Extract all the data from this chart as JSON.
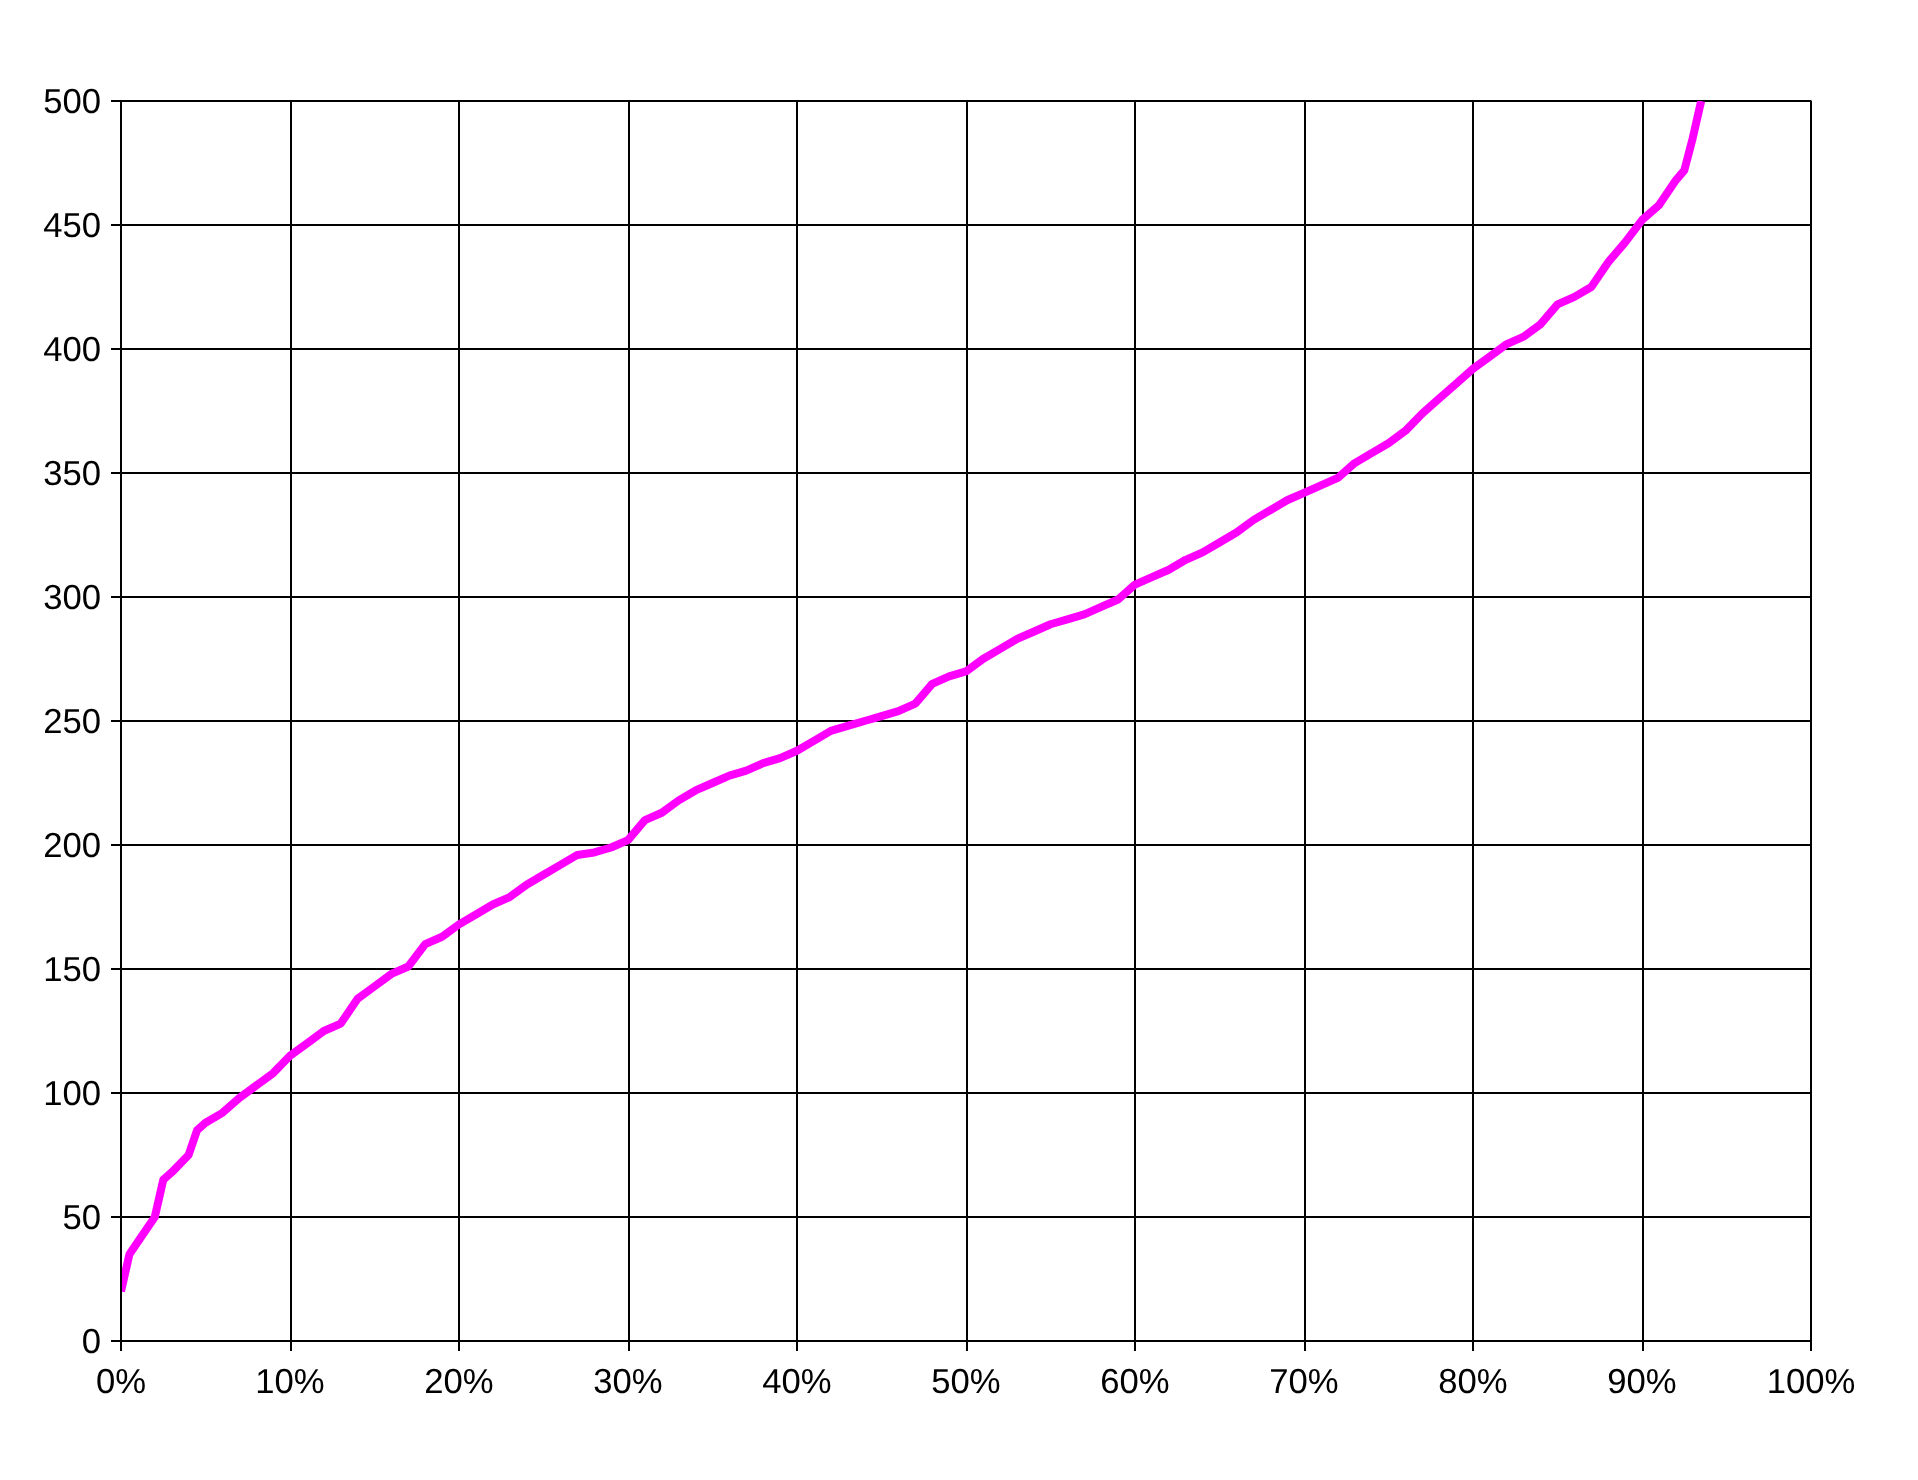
{
  "chart_data": {
    "type": "line",
    "x": [
      0,
      0.5,
      1,
      2,
      2.5,
      3,
      4,
      4.5,
      5,
      6,
      7,
      8,
      9,
      10,
      11,
      12,
      13,
      14,
      15,
      16,
      17,
      18,
      19,
      20,
      21,
      22,
      23,
      24,
      25,
      26,
      27,
      28,
      29,
      30,
      31,
      32,
      33,
      34,
      35,
      36,
      37,
      38,
      39,
      40,
      41,
      42,
      43,
      44,
      45,
      46,
      47,
      48,
      49,
      50,
      51,
      52,
      53,
      54,
      55,
      56,
      57,
      58,
      59,
      60,
      61,
      62,
      63,
      64,
      65,
      66,
      67,
      68,
      69,
      70,
      71,
      72,
      73,
      74,
      75,
      76,
      77,
      78,
      79,
      80,
      81,
      82,
      83,
      84,
      85,
      86,
      87,
      88,
      89,
      90,
      91,
      92,
      92.5,
      93,
      93.5
    ],
    "series": [
      {
        "color": "#ff00ff",
        "values": [
          20,
          35,
          40,
          50,
          65,
          68,
          75,
          85,
          88,
          92,
          98,
          103,
          108,
          115,
          120,
          125,
          128,
          138,
          143,
          148,
          151,
          160,
          163,
          168,
          172,
          176,
          179,
          184,
          188,
          192,
          196,
          197,
          199,
          202,
          210,
          213,
          218,
          222,
          225,
          228,
          230,
          233,
          235,
          238,
          242,
          246,
          248,
          250,
          252,
          254,
          257,
          265,
          268,
          270,
          275,
          279,
          283,
          286,
          289,
          291,
          293,
          296,
          299,
          305,
          308,
          311,
          315,
          318,
          322,
          326,
          331,
          335,
          339,
          342,
          345,
          348,
          354,
          358,
          362,
          367,
          374,
          380,
          386,
          392,
          397,
          402,
          405,
          410,
          418,
          421,
          425,
          435,
          443,
          452,
          458,
          468,
          472,
          485,
          500
        ]
      }
    ],
    "xlim": [
      0,
      100
    ],
    "xticks": [
      {
        "value": 0,
        "label": "0%"
      },
      {
        "value": 10,
        "label": "10%"
      },
      {
        "value": 20,
        "label": "20%"
      },
      {
        "value": 30,
        "label": "30%"
      },
      {
        "value": 40,
        "label": "40%"
      },
      {
        "value": 50,
        "label": "50%"
      },
      {
        "value": 60,
        "label": "60%"
      },
      {
        "value": 70,
        "label": "70%"
      },
      {
        "value": 80,
        "label": "80%"
      },
      {
        "value": 90,
        "label": "90%"
      },
      {
        "value": 100,
        "label": "100%"
      }
    ],
    "ylim": [
      0,
      500
    ],
    "yticks": [
      0,
      50,
      100,
      150,
      200,
      250,
      300,
      350,
      400,
      450,
      500
    ],
    "grid": true,
    "marker": "none",
    "line_style": "solid"
  }
}
